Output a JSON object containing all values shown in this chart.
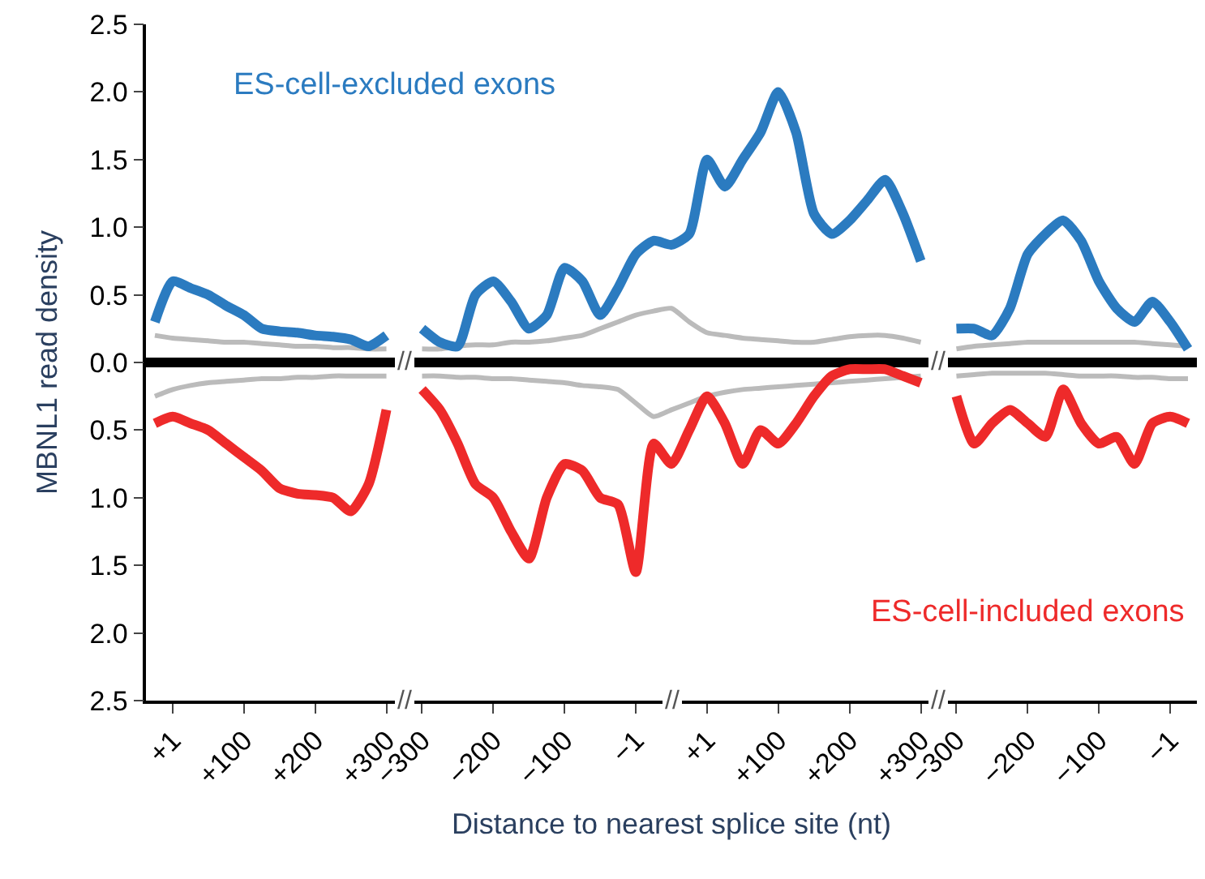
{
  "chart_data": {
    "type": "line",
    "ylabel": "MBNL1 read density",
    "xlabel": "Distance to nearest splice site (nt)",
    "categories": [
      null,
      "+1",
      null,
      null,
      null,
      "+100",
      null,
      null,
      null,
      "+200",
      null,
      null,
      null,
      "+300",
      null,
      "−300",
      null,
      null,
      null,
      "−200",
      null,
      null,
      null,
      "−100",
      null,
      null,
      null,
      "−1",
      null,
      null,
      null,
      "+1",
      null,
      null,
      null,
      "+100",
      null,
      null,
      null,
      "+200",
      null,
      null,
      null,
      "+300",
      null,
      "−300",
      null,
      null,
      null,
      "−200",
      null,
      null,
      null,
      "−100",
      null,
      null,
      null,
      "−1",
      null
    ],
    "ylim": [
      -2.5,
      2.5
    ],
    "yticks": [
      {
        "value": 2.5,
        "label": "2.5"
      },
      {
        "value": 2.0,
        "label": "2.0"
      },
      {
        "value": 1.5,
        "label": "1.5"
      },
      {
        "value": 1.0,
        "label": "1.0"
      },
      {
        "value": 0.5,
        "label": "0.5"
      },
      {
        "value": 0,
        "label": "0.0"
      },
      {
        "value": -0.5,
        "label": "0.5"
      },
      {
        "value": -1.0,
        "label": "1.0"
      },
      {
        "value": -1.5,
        "label": "1.5"
      },
      {
        "value": -2.0,
        "label": "2.0"
      },
      {
        "value": -2.5,
        "label": "2.5"
      }
    ],
    "grid": false,
    "marker": "none",
    "line_style": "solid",
    "ref_lines": [
      {
        "axis": "y",
        "value": 0,
        "color": "#000000"
      }
    ],
    "annotations": [
      "//",
      "//",
      "//",
      "//",
      "//"
    ],
    "series": [
      {
        "name": "ES-cell-excluded exons",
        "color": "#2b7bc0",
        "values": [
          0.3,
          0.6,
          0.55,
          0.5,
          0.42,
          0.35,
          0.25,
          0.23,
          0.22,
          0.2,
          0.19,
          0.17,
          0.12,
          0.2,
          null,
          0.25,
          0.15,
          0.12,
          0.5,
          0.6,
          0.45,
          0.25,
          0.35,
          0.7,
          0.6,
          0.35,
          0.55,
          0.8,
          0.9,
          0.87,
          0.95,
          1.5,
          1.3,
          1.5,
          1.7,
          2.0,
          1.7,
          1.1,
          0.95,
          1.05,
          1.2,
          1.35,
          1.1,
          0.75,
          null,
          0.25,
          0.25,
          0.2,
          0.4,
          0.8,
          0.95,
          1.05,
          0.9,
          0.6,
          0.4,
          0.3,
          0.45,
          0.3,
          0.1
        ]
      },
      {
        "name": "ES-cell-included exons",
        "color": "#ee2a2a",
        "values": [
          -0.45,
          -0.4,
          -0.45,
          -0.5,
          -0.6,
          -0.7,
          -0.8,
          -0.93,
          -0.97,
          -0.98,
          -1.0,
          -1.1,
          -0.9,
          -0.35,
          null,
          -0.2,
          -0.35,
          -0.6,
          -0.9,
          -1.0,
          -1.25,
          -1.45,
          -1.0,
          -0.75,
          -0.8,
          -1.0,
          -1.05,
          -1.55,
          -0.6,
          -0.75,
          -0.5,
          -0.25,
          -0.45,
          -0.75,
          -0.5,
          -0.6,
          -0.45,
          -0.25,
          -0.1,
          -0.05,
          -0.05,
          -0.05,
          -0.1,
          -0.15,
          null,
          -0.25,
          -0.6,
          -0.45,
          -0.35,
          -0.45,
          -0.55,
          -0.2,
          -0.45,
          -0.6,
          -0.55,
          -0.75,
          -0.45,
          -0.4,
          -0.45
        ]
      },
      {
        "color": "#bbbbbb",
        "values": [
          0.2,
          0.18,
          0.17,
          0.16,
          0.15,
          0.15,
          0.14,
          0.13,
          0.12,
          0.12,
          0.11,
          0.11,
          0.1,
          0.1,
          null,
          0.1,
          0.1,
          0.12,
          0.13,
          0.13,
          0.15,
          0.15,
          0.16,
          0.18,
          0.2,
          0.25,
          0.3,
          0.35,
          0.38,
          0.4,
          0.3,
          0.22,
          0.2,
          0.18,
          0.17,
          0.16,
          0.15,
          0.15,
          0.17,
          0.19,
          0.2,
          0.2,
          0.18,
          0.15,
          null,
          0.1,
          0.12,
          0.13,
          0.14,
          0.15,
          0.15,
          0.15,
          0.15,
          0.15,
          0.15,
          0.15,
          0.14,
          0.13,
          0.12
        ]
      },
      {
        "color": "#bbbbbb",
        "values": [
          -0.25,
          -0.2,
          -0.17,
          -0.15,
          -0.14,
          -0.13,
          -0.12,
          -0.12,
          -0.11,
          -0.11,
          -0.1,
          -0.1,
          -0.1,
          -0.1,
          null,
          -0.1,
          -0.1,
          -0.11,
          -0.11,
          -0.12,
          -0.12,
          -0.13,
          -0.14,
          -0.15,
          -0.17,
          -0.18,
          -0.2,
          -0.3,
          -0.4,
          -0.35,
          -0.3,
          -0.25,
          -0.22,
          -0.2,
          -0.19,
          -0.18,
          -0.17,
          -0.16,
          -0.15,
          -0.14,
          -0.13,
          -0.12,
          -0.11,
          -0.1,
          null,
          -0.1,
          -0.09,
          -0.08,
          -0.08,
          -0.08,
          -0.08,
          -0.09,
          -0.1,
          -0.1,
          -0.1,
          -0.11,
          -0.11,
          -0.12,
          -0.12
        ]
      }
    ]
  }
}
